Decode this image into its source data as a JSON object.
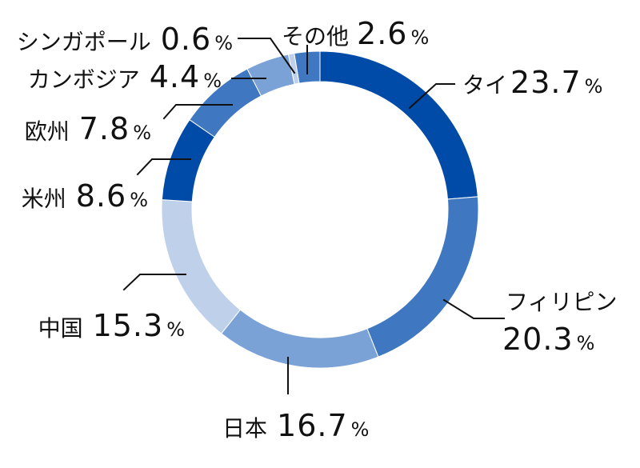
{
  "chart_data": {
    "type": "pie",
    "style": "donut",
    "unit": "%",
    "categories": [
      "タイ",
      "フィリピン",
      "日本",
      "中国",
      "米州",
      "欧州",
      "カンボジア",
      "シンガポール",
      "その他"
    ],
    "values": [
      23.7,
      20.3,
      16.7,
      15.3,
      8.6,
      7.8,
      4.4,
      0.6,
      2.6
    ],
    "value_labels": [
      "23.7",
      "20.3",
      "16.7",
      "15.3",
      "8.6",
      "7.8",
      "4.4",
      "0.6",
      "2.6"
    ],
    "colors": [
      "#004ba8",
      "#3f78c0",
      "#7aa2d6",
      "#bfd1ea",
      "#004ba8",
      "#3f78c0",
      "#7aa2d6",
      "#bfd1ea",
      "#3f78c0"
    ],
    "legend": "none",
    "grid": false
  }
}
